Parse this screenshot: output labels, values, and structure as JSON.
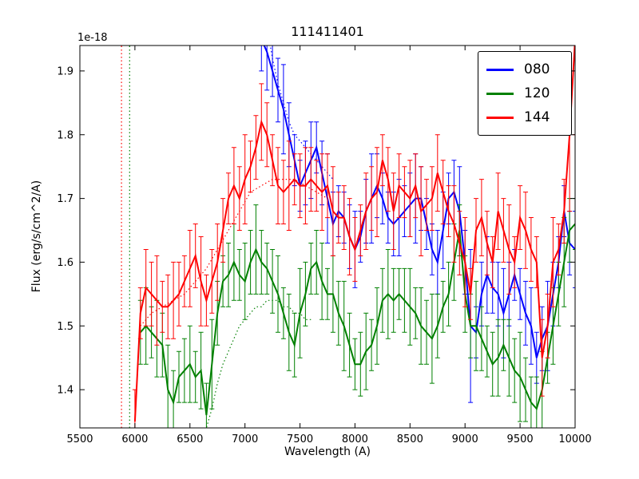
{
  "chart_data": {
    "type": "line",
    "title": "111411401",
    "xlabel": "Wavelength (A)",
    "ylabel": "Flux (erg/s/cm^2/A)",
    "y_offset": "1e-18",
    "xlim": [
      5500,
      10000
    ],
    "ylim": [
      1.34,
      1.94
    ],
    "x_ticks": [
      5500,
      6000,
      6500,
      7000,
      7500,
      8000,
      8500,
      9000,
      9500,
      10000
    ],
    "y_ticks": [
      1.4,
      1.5,
      1.6,
      1.7,
      1.8,
      1.9
    ],
    "grid": false,
    "legend_position": "upper right",
    "series": [
      {
        "name": "080",
        "color": "#0000ff",
        "x_start": 7100,
        "x_step": 50,
        "y": [
          1.98,
          1.95,
          1.93,
          1.9,
          1.87,
          1.84,
          1.8,
          1.76,
          1.72,
          1.74,
          1.76,
          1.78,
          1.74,
          1.7,
          1.66,
          1.68,
          1.67,
          1.64,
          1.62,
          1.64,
          1.68,
          1.7,
          1.72,
          1.7,
          1.67,
          1.66,
          1.67,
          1.68,
          1.69,
          1.7,
          1.7,
          1.66,
          1.62,
          1.6,
          1.65,
          1.7,
          1.71,
          1.68,
          1.6,
          1.5,
          1.49,
          1.55,
          1.58,
          1.56,
          1.55,
          1.52,
          1.55,
          1.58,
          1.55,
          1.52,
          1.5,
          1.45,
          1.48,
          1.5,
          1.55,
          1.6,
          1.68,
          1.63,
          1.62
        ],
        "yerr_pattern": [
          0.04,
          0.05,
          0.06,
          0.04,
          0.05,
          0.07,
          0.05,
          0.04
        ],
        "yerr_overrides": {
          "39": 0.12
        }
      },
      {
        "name": "120",
        "color": "#008000",
        "x_start": 6050,
        "x_step": 50,
        "y": [
          1.49,
          1.5,
          1.49,
          1.48,
          1.47,
          1.4,
          1.38,
          1.42,
          1.43,
          1.44,
          1.42,
          1.43,
          1.36,
          1.44,
          1.52,
          1.57,
          1.58,
          1.6,
          1.58,
          1.57,
          1.6,
          1.62,
          1.6,
          1.59,
          1.57,
          1.55,
          1.52,
          1.49,
          1.47,
          1.52,
          1.55,
          1.59,
          1.6,
          1.57,
          1.55,
          1.55,
          1.52,
          1.5,
          1.47,
          1.44,
          1.44,
          1.46,
          1.47,
          1.5,
          1.54,
          1.55,
          1.54,
          1.55,
          1.54,
          1.53,
          1.52,
          1.5,
          1.49,
          1.48,
          1.5,
          1.53,
          1.55,
          1.6,
          1.65,
          1.55,
          1.5,
          1.5,
          1.48,
          1.46,
          1.44,
          1.45,
          1.47,
          1.45,
          1.43,
          1.42,
          1.4,
          1.38,
          1.37,
          1.4,
          1.45,
          1.5,
          1.55,
          1.6,
          1.65,
          1.66
        ],
        "yerr_pattern": [
          0.05,
          0.06,
          0.04,
          0.06,
          0.05,
          0.07,
          0.05,
          0.04
        ]
      },
      {
        "name": "144",
        "color": "#ff0000",
        "x_start": 6000,
        "x_step": 50,
        "y": [
          1.35,
          1.52,
          1.56,
          1.55,
          1.54,
          1.53,
          1.53,
          1.54,
          1.55,
          1.57,
          1.59,
          1.61,
          1.57,
          1.54,
          1.57,
          1.6,
          1.65,
          1.7,
          1.72,
          1.7,
          1.73,
          1.75,
          1.78,
          1.82,
          1.8,
          1.76,
          1.72,
          1.71,
          1.72,
          1.73,
          1.72,
          1.72,
          1.73,
          1.72,
          1.71,
          1.72,
          1.68,
          1.67,
          1.67,
          1.64,
          1.62,
          1.65,
          1.68,
          1.7,
          1.71,
          1.76,
          1.73,
          1.68,
          1.72,
          1.71,
          1.7,
          1.72,
          1.68,
          1.69,
          1.7,
          1.74,
          1.71,
          1.68,
          1.66,
          1.63,
          1.6,
          1.55,
          1.65,
          1.67,
          1.63,
          1.6,
          1.68,
          1.65,
          1.62,
          1.6,
          1.67,
          1.65,
          1.62,
          1.6,
          1.45,
          1.5,
          1.6,
          1.62,
          1.68,
          1.8,
          1.95
        ],
        "yerr_pattern": [
          0.05,
          0.04,
          0.06,
          0.05,
          0.07,
          0.04,
          0.05,
          0.06
        ],
        "yerr_overrides": {
          "79": 0.12,
          "80": 0.15
        }
      }
    ],
    "dotted_overlays": [
      {
        "color": "#ff0000",
        "x": [
          5878,
          5878
        ],
        "y": [
          1.34,
          1.94
        ]
      },
      {
        "color": "#008000",
        "x": [
          5952,
          5952
        ],
        "y": [
          1.34,
          1.94
        ]
      },
      {
        "color": "#0000ff",
        "x_start": 7150,
        "x_step": 50,
        "y": [
          2.02,
          1.97,
          1.92,
          1.88,
          1.85,
          1.82,
          1.8,
          1.79,
          1.78,
          1.77,
          1.76,
          1.75,
          1.74,
          1.73
        ]
      },
      {
        "color": "#008000",
        "x_start": 6550,
        "x_step": 50,
        "y": [
          1.27,
          1.3,
          1.34,
          1.37,
          1.41,
          1.44,
          1.46,
          1.48,
          1.5,
          1.51,
          1.52,
          1.53,
          1.53,
          1.54,
          1.54,
          1.54,
          1.53,
          1.53,
          1.52,
          1.52,
          1.51,
          1.51
        ]
      },
      {
        "color": "#ff0000",
        "x_start": 6050,
        "x_step": 100,
        "y": [
          1.5,
          1.52,
          1.53,
          1.54,
          1.55,
          1.57,
          1.59,
          1.62,
          1.65,
          1.68,
          1.71,
          1.72,
          1.73,
          1.73,
          1.73,
          1.72,
          1.71,
          1.7
        ]
      }
    ]
  }
}
